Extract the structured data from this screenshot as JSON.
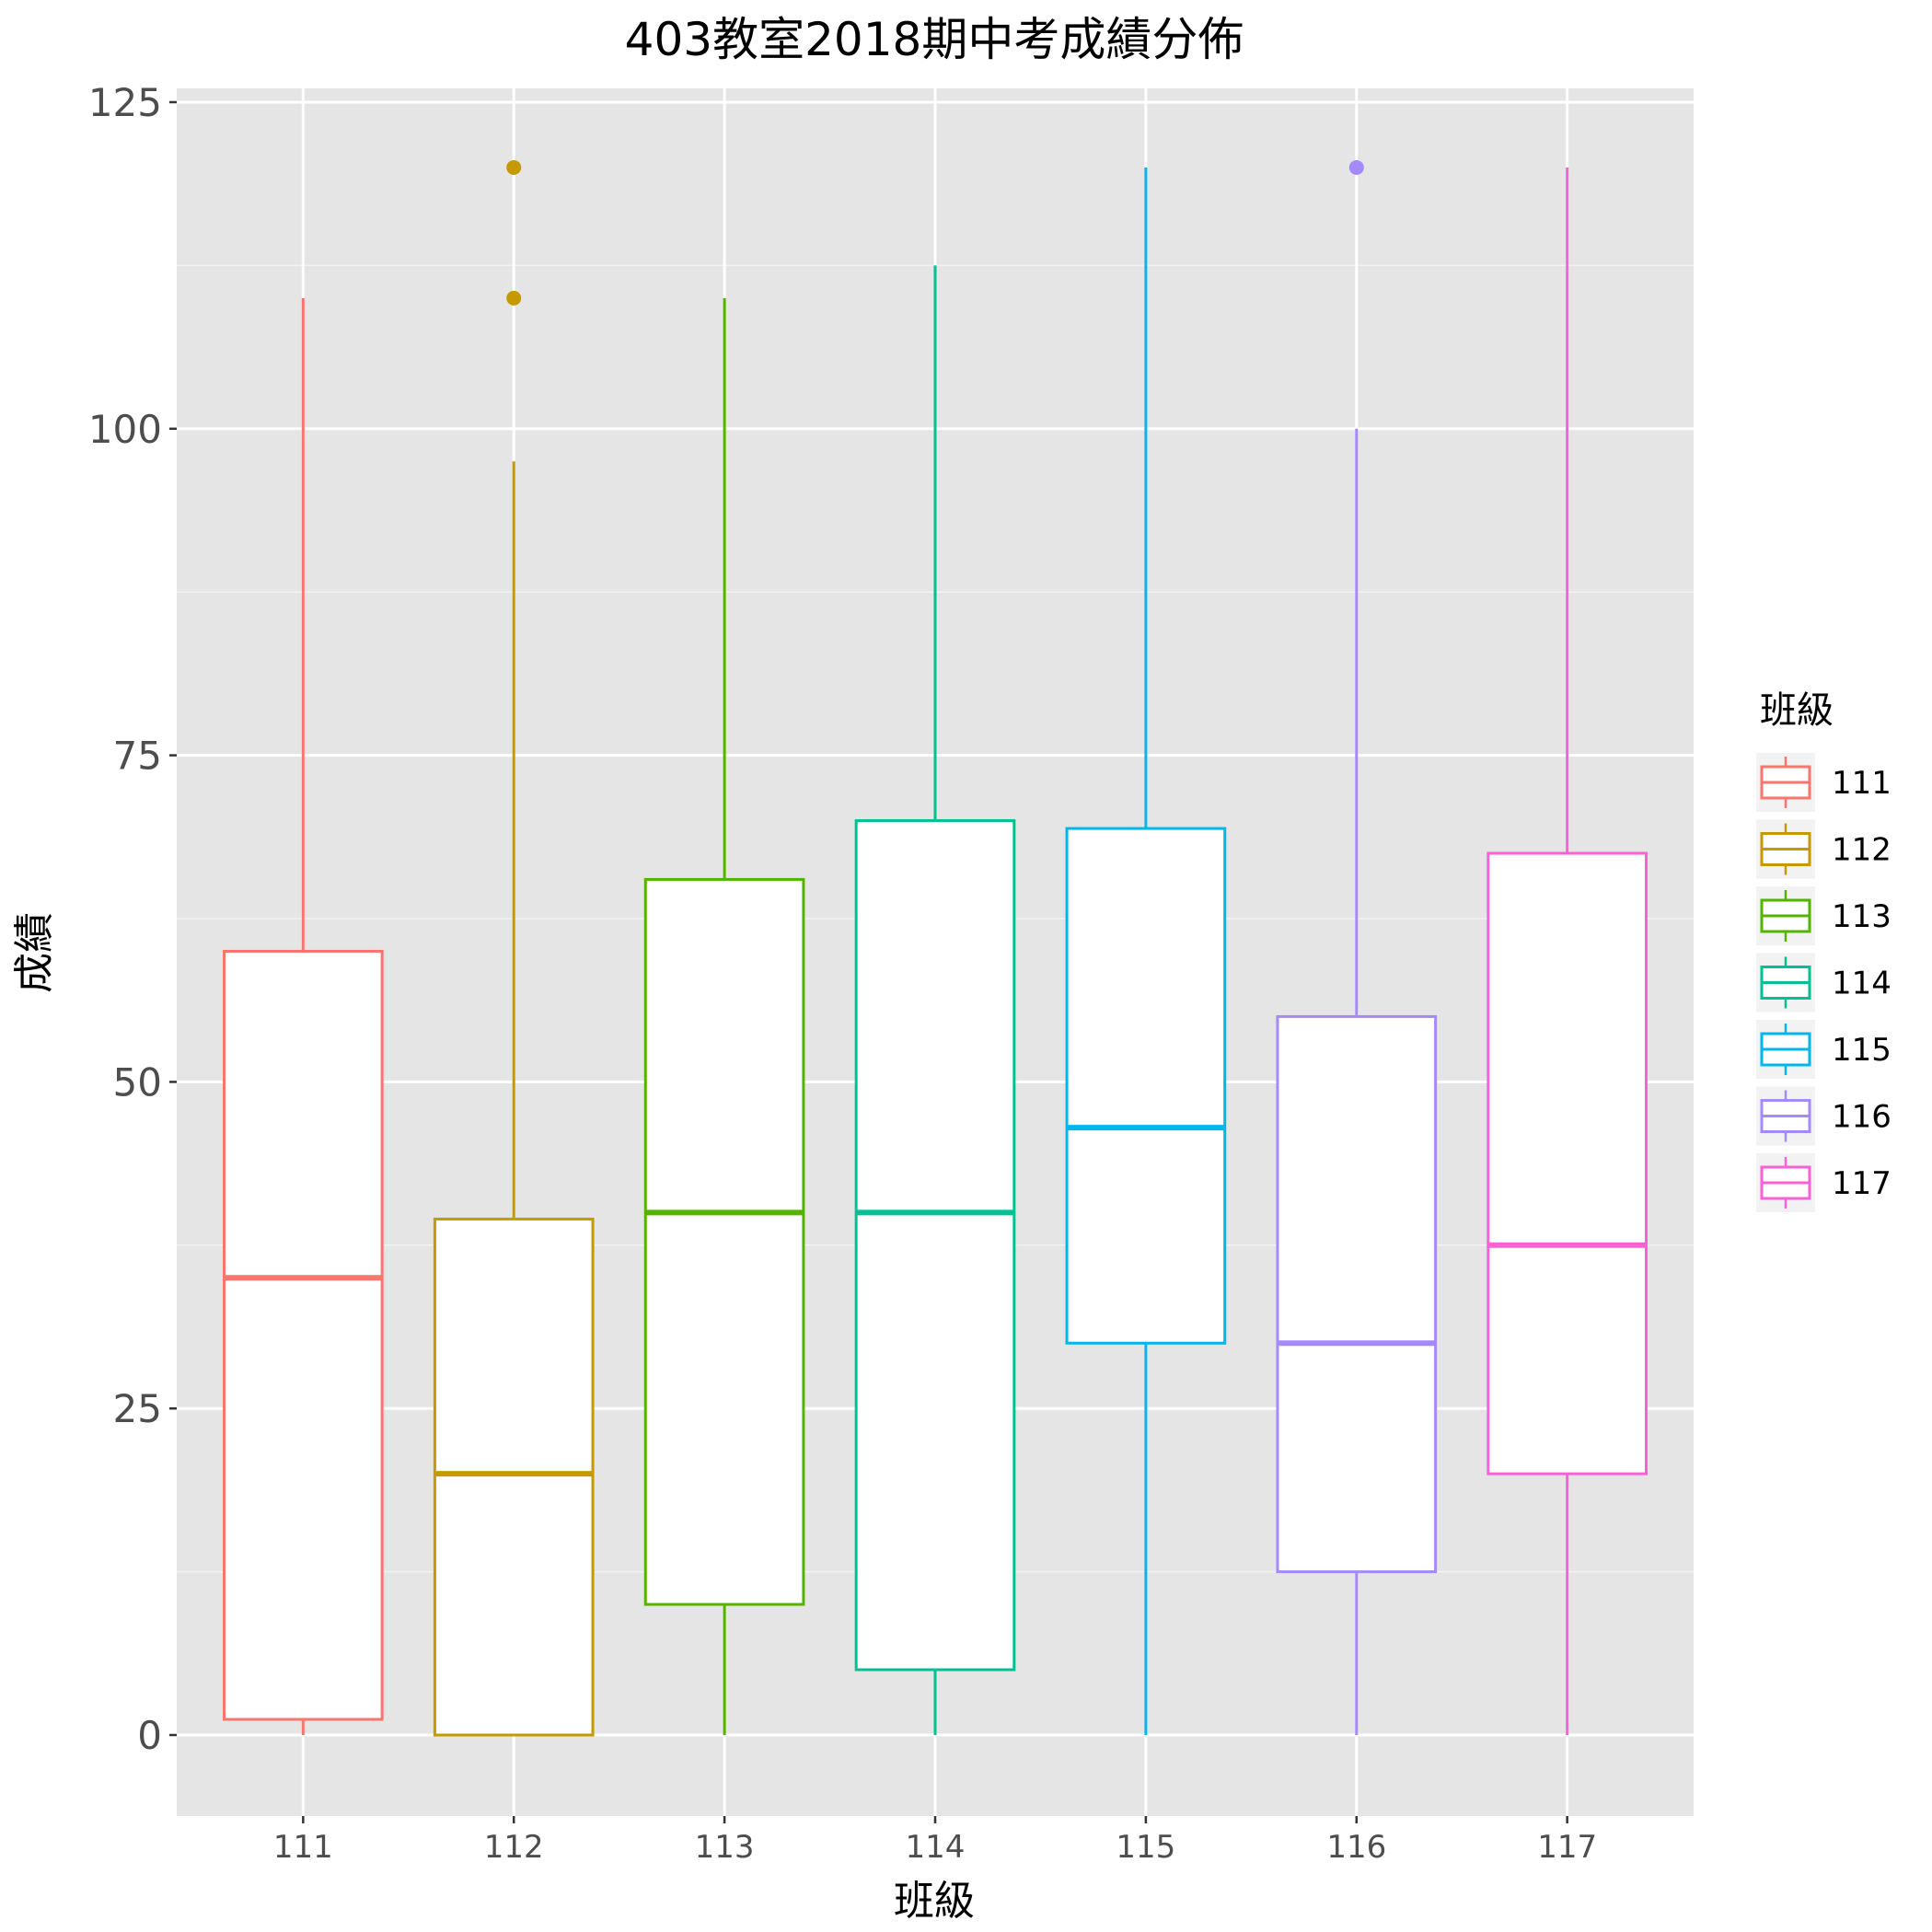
{
  "chart_data": {
    "type": "boxplot",
    "title": "403教室2018期中考成績分佈",
    "xlabel": "班級",
    "ylabel": "成績",
    "ylim": [
      -12,
      125
    ],
    "yticks": [
      0,
      25,
      50,
      75,
      100,
      125
    ],
    "ytick_labels": [
      "0",
      "25",
      "50",
      "75",
      "100",
      "125"
    ],
    "grid": true,
    "legend": {
      "title": "班級",
      "position": "right"
    },
    "categories": [
      "111",
      "112",
      "113",
      "114",
      "115",
      "116",
      "117"
    ],
    "series": [
      {
        "name": "111",
        "color": "#F8766D",
        "whisker_low": 0,
        "q1": 1.2,
        "median": 35,
        "q3": 60,
        "whisker_high": 110,
        "outliers": []
      },
      {
        "name": "112",
        "color": "#C49A00",
        "whisker_low": 0,
        "q1": 0,
        "median": 20,
        "q3": 39.5,
        "whisker_high": 97.5,
        "outliers": [
          110,
          120
        ]
      },
      {
        "name": "113",
        "color": "#53B400",
        "whisker_low": 0,
        "q1": 10,
        "median": 40,
        "q3": 65.5,
        "whisker_high": 110,
        "outliers": []
      },
      {
        "name": "114",
        "color": "#00C094",
        "whisker_low": 0,
        "q1": 5,
        "median": 40,
        "q3": 70,
        "whisker_high": 112.5,
        "outliers": []
      },
      {
        "name": "115",
        "color": "#00B6EB",
        "whisker_low": 0,
        "q1": 30,
        "median": 46.5,
        "q3": 69.4,
        "whisker_high": 120,
        "outliers": []
      },
      {
        "name": "116",
        "color": "#A58AFF",
        "whisker_low": 0,
        "q1": 12.5,
        "median": 30,
        "q3": 55,
        "whisker_high": 100,
        "outliers": [
          120
        ]
      },
      {
        "name": "117",
        "color": "#FB61D7",
        "whisker_low": 0,
        "q1": 20,
        "median": 37.5,
        "q3": 67.5,
        "whisker_high": 120,
        "outliers": []
      }
    ]
  }
}
